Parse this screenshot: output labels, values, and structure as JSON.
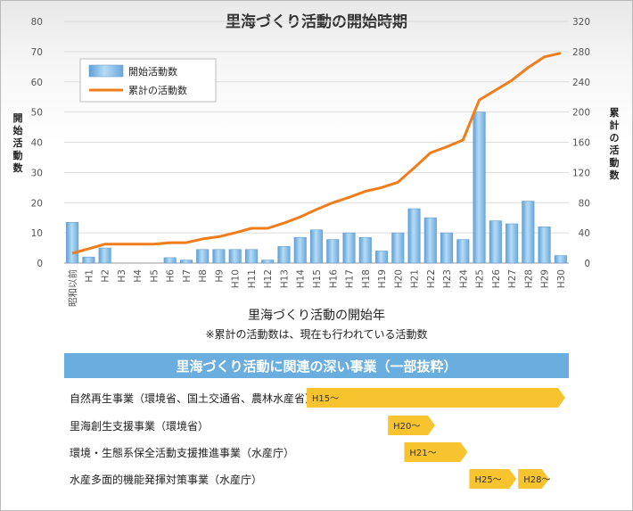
{
  "chart_data": {
    "type": "bar+line",
    "title": "里海づくり活動の開始時期",
    "categories": [
      "昭和以前",
      "H1",
      "H2",
      "H3",
      "H4",
      "H5",
      "H6",
      "H7",
      "H8",
      "H9",
      "H10",
      "H11",
      "H12",
      "H13",
      "H14",
      "H15",
      "H16",
      "H17",
      "H18",
      "H19",
      "H20",
      "H21",
      "H22",
      "H23",
      "H24",
      "H25",
      "H26",
      "H27",
      "H28",
      "H29",
      "H30"
    ],
    "series": [
      {
        "name": "開始活動数",
        "type": "bar",
        "axis": "left",
        "color": "#7fb8e6",
        "values": [
          13.5,
          2,
          5,
          0,
          0,
          0,
          1.8,
          1,
          4.5,
          4.5,
          4.5,
          4.5,
          1,
          5.5,
          8.5,
          11,
          7.8,
          10,
          8.5,
          4,
          10,
          18,
          15,
          10,
          7.8,
          50,
          14,
          13,
          20.5,
          12,
          2.5
        ]
      },
      {
        "name": "累計の活動数",
        "type": "line",
        "axis": "right",
        "color": "#f07d1a",
        "values": [
          13,
          19,
          25,
          25,
          25,
          25,
          27,
          27,
          32,
          35,
          40,
          46,
          46,
          53,
          61,
          71,
          80,
          87,
          95,
          100,
          107,
          126,
          146,
          154,
          163,
          216,
          229,
          242,
          259,
          273,
          278
        ]
      }
    ],
    "ylabel_left": "開始活動数",
    "ylabel_right": "累計の活動数",
    "ylim_left": [
      0,
      80
    ],
    "ylim_right": [
      0,
      320
    ],
    "yticks_left": [
      "0",
      "10",
      "20",
      "30",
      "40",
      "50",
      "60",
      "70",
      "80"
    ],
    "yticks_right": [
      "0",
      "40",
      "80",
      "120",
      "160",
      "200",
      "240",
      "280",
      "320"
    ],
    "xlabel": "里海づくり活動の開始年",
    "note": "※累計の活動数は、現在も行われている活動数",
    "grid": "horizontal",
    "legend": "top-left"
  },
  "timeline": {
    "title": "里海づくり活動に関連の深い事業（一部抜粋）",
    "colors": {
      "banner": "#6aaee0",
      "arrow": "#f7c32e"
    },
    "projects": [
      {
        "label": "自然再生事業（環境省、国土交通省、農林水産省）",
        "arrows": [
          {
            "text": "H15〜",
            "from": "H15",
            "to": "H30"
          }
        ]
      },
      {
        "label": "里海創生支援事業（環境省）",
        "arrows": [
          {
            "text": "H20〜",
            "from": "H20",
            "to": "H22"
          }
        ]
      },
      {
        "label": "環境・生態系保全活動支援推進事業（水産庁）",
        "arrows": [
          {
            "text": "H21〜",
            "from": "H21",
            "to": "H24"
          }
        ]
      },
      {
        "label": "水産多面的機能発揮対策事業（水産庁）",
        "arrows": [
          {
            "text": "H25〜",
            "from": "H25",
            "to": "H27"
          },
          {
            "text": "H28〜",
            "from": "H28",
            "to": "H29"
          }
        ]
      }
    ]
  }
}
